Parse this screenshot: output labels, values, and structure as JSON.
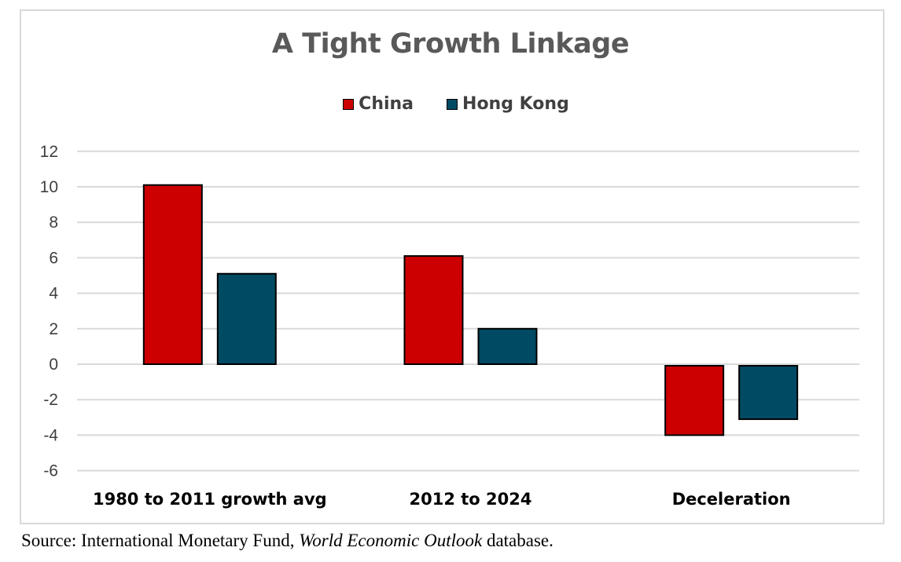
{
  "colors": {
    "china": "#cc0000",
    "hongkong": "#004a63",
    "grid": "#d9d9d9"
  },
  "chart_data": {
    "type": "bar",
    "title": "A Tight Growth Linkage",
    "categories": [
      "1980 to 2011 growth avg",
      "2012 to 2024",
      "Deceleration"
    ],
    "series": [
      {
        "name": "China",
        "values": [
          10.1,
          6.1,
          -4.0
        ]
      },
      {
        "name": "Hong Kong",
        "values": [
          5.1,
          2.0,
          -3.1
        ]
      }
    ],
    "ylim": [
      -6,
      12
    ],
    "yticks": [
      -6,
      -4,
      -2,
      0,
      2,
      4,
      6,
      8,
      10,
      12
    ],
    "legend_position": "top-center",
    "grid": true
  },
  "source": {
    "prefix": "Source: International Monetary Fund, ",
    "italic": "World Economic Outlook",
    "suffix": " database."
  }
}
